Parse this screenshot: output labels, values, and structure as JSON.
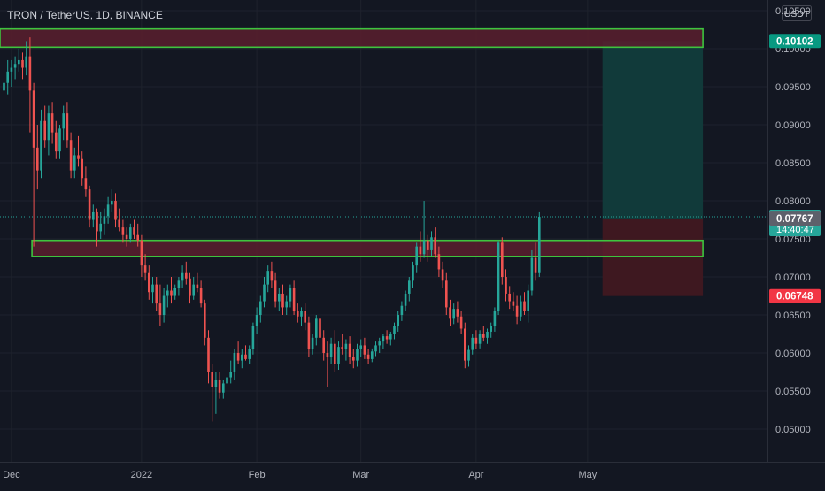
{
  "header": {
    "title": "TRON / TetherUS, 1D, BINANCE"
  },
  "currency_label": "USDT",
  "colors": {
    "background": "#131722",
    "up": "#26a69a",
    "down": "#ef5350",
    "zone_fill": "#5a1f2e",
    "zone_border": "#3ec43e",
    "target_fill": "#113a3a",
    "stop_fill": "#3e1820",
    "axis_text": "#b2b5be"
  },
  "chart_data": {
    "type": "candlestick",
    "title": "TRON / TetherUS, 1D, BINANCE",
    "ylim": [
      0.0457,
      0.1064
    ],
    "y_ticks": [
      "0.05000",
      "0.05500",
      "0.06000",
      "0.06500",
      "0.07000",
      "0.07500",
      "0.08000",
      "0.08500",
      "0.09000",
      "0.09500",
      "0.10000",
      "0.10500"
    ],
    "x_ticks": [
      {
        "label": "Dec",
        "index": 2
      },
      {
        "label": "2022",
        "index": 37
      },
      {
        "label": "Feb",
        "index": 68
      },
      {
        "label": "Mar",
        "index": 96
      },
      {
        "label": "Apr",
        "index": 127
      },
      {
        "label": "May",
        "index": 157
      }
    ],
    "price_labels": [
      {
        "label": "0.10102",
        "value": 0.10102,
        "kind": "target"
      },
      {
        "label": "0.07791",
        "value": 0.07791,
        "kind": "current",
        "countdown": "14:40:47"
      },
      {
        "label": "0.07767",
        "value": 0.07767,
        "kind": "entry"
      },
      {
        "label": "0.06748",
        "value": 0.06748,
        "kind": "stop"
      }
    ],
    "zones": [
      {
        "name": "resistance-zone",
        "top": 0.1026,
        "bottom": 0.1002,
        "start_index": 0,
        "end_index": 188
      },
      {
        "name": "support-zone",
        "top": 0.0748,
        "bottom": 0.0727,
        "start_index": 8,
        "end_index": 188
      }
    ],
    "position": {
      "start_index": 161,
      "end_index": 188,
      "entry": 0.07767,
      "target": 0.10102,
      "stop": 0.06748
    },
    "last_price": 0.07791,
    "candles": [
      [
        0.0945,
        0.096,
        0.0905,
        0.0955
      ],
      [
        0.0955,
        0.0985,
        0.094,
        0.097
      ],
      [
        0.097,
        0.0985,
        0.095,
        0.0975
      ],
      [
        0.0975,
        0.099,
        0.096,
        0.098
      ],
      [
        0.098,
        0.1,
        0.097,
        0.0985
      ],
      [
        0.0985,
        0.0995,
        0.096,
        0.0975
      ],
      [
        0.0975,
        0.101,
        0.0965,
        0.099
      ],
      [
        0.099,
        0.1015,
        0.089,
        0.0945
      ],
      [
        0.0945,
        0.0955,
        0.074,
        0.087
      ],
      [
        0.087,
        0.09,
        0.0815,
        0.084
      ],
      [
        0.084,
        0.092,
        0.083,
        0.0905
      ],
      [
        0.0905,
        0.0925,
        0.087,
        0.088
      ],
      [
        0.088,
        0.0925,
        0.086,
        0.0915
      ],
      [
        0.0915,
        0.093,
        0.0875,
        0.089
      ],
      [
        0.089,
        0.0905,
        0.0855,
        0.0865
      ],
      [
        0.0865,
        0.09,
        0.0855,
        0.0895
      ],
      [
        0.0895,
        0.0925,
        0.088,
        0.0915
      ],
      [
        0.0915,
        0.093,
        0.087,
        0.088
      ],
      [
        0.088,
        0.089,
        0.083,
        0.084
      ],
      [
        0.084,
        0.087,
        0.083,
        0.086
      ],
      [
        0.086,
        0.0885,
        0.0845,
        0.0855
      ],
      [
        0.0855,
        0.0865,
        0.082,
        0.083
      ],
      [
        0.083,
        0.0845,
        0.0805,
        0.0815
      ],
      [
        0.0815,
        0.082,
        0.0765,
        0.0775
      ],
      [
        0.0775,
        0.0795,
        0.0765,
        0.0785
      ],
      [
        0.0785,
        0.079,
        0.074,
        0.076
      ],
      [
        0.076,
        0.0785,
        0.075,
        0.077
      ],
      [
        0.077,
        0.079,
        0.0755,
        0.078
      ],
      [
        0.078,
        0.0805,
        0.077,
        0.0795
      ],
      [
        0.0795,
        0.0815,
        0.0785,
        0.08
      ],
      [
        0.08,
        0.081,
        0.0765,
        0.0775
      ],
      [
        0.0775,
        0.079,
        0.076,
        0.0765
      ],
      [
        0.0765,
        0.0775,
        0.0745,
        0.0755
      ],
      [
        0.0755,
        0.0765,
        0.074,
        0.075
      ],
      [
        0.075,
        0.077,
        0.0745,
        0.0765
      ],
      [
        0.0765,
        0.0775,
        0.075,
        0.0755
      ],
      [
        0.0755,
        0.077,
        0.074,
        0.0748
      ],
      [
        0.0748,
        0.0755,
        0.07,
        0.0715
      ],
      [
        0.0715,
        0.073,
        0.0695,
        0.0705
      ],
      [
        0.0705,
        0.0715,
        0.067,
        0.068
      ],
      [
        0.068,
        0.07,
        0.0665,
        0.069
      ],
      [
        0.069,
        0.07,
        0.0655,
        0.0665
      ],
      [
        0.0665,
        0.069,
        0.0635,
        0.065
      ],
      [
        0.065,
        0.0685,
        0.064,
        0.0675
      ],
      [
        0.0675,
        0.069,
        0.066,
        0.0682
      ],
      [
        0.0682,
        0.07,
        0.0665,
        0.0675
      ],
      [
        0.0675,
        0.069,
        0.067,
        0.0685
      ],
      [
        0.0685,
        0.07,
        0.0675,
        0.0695
      ],
      [
        0.0695,
        0.0715,
        0.0685,
        0.0705
      ],
      [
        0.0705,
        0.072,
        0.069,
        0.0698
      ],
      [
        0.0698,
        0.0705,
        0.0665,
        0.0675
      ],
      [
        0.0675,
        0.07,
        0.067,
        0.069
      ],
      [
        0.069,
        0.0705,
        0.068,
        0.0685
      ],
      [
        0.0685,
        0.0695,
        0.066,
        0.0665
      ],
      [
        0.0665,
        0.067,
        0.061,
        0.062
      ],
      [
        0.062,
        0.063,
        0.056,
        0.0575
      ],
      [
        0.0575,
        0.0585,
        0.051,
        0.0555
      ],
      [
        0.0555,
        0.0575,
        0.052,
        0.0565
      ],
      [
        0.0565,
        0.0575,
        0.054,
        0.0548
      ],
      [
        0.0548,
        0.0565,
        0.054,
        0.056
      ],
      [
        0.056,
        0.0575,
        0.055,
        0.0568
      ],
      [
        0.0568,
        0.059,
        0.056,
        0.0575
      ],
      [
        0.0575,
        0.0605,
        0.0565,
        0.06
      ],
      [
        0.06,
        0.0615,
        0.0585,
        0.059
      ],
      [
        0.059,
        0.0605,
        0.058,
        0.0598
      ],
      [
        0.0598,
        0.061,
        0.059,
        0.0592
      ],
      [
        0.0592,
        0.061,
        0.0585,
        0.0605
      ],
      [
        0.0605,
        0.064,
        0.0598,
        0.0635
      ],
      [
        0.0635,
        0.066,
        0.0625,
        0.065
      ],
      [
        0.065,
        0.0675,
        0.064,
        0.0668
      ],
      [
        0.0668,
        0.07,
        0.066,
        0.069
      ],
      [
        0.069,
        0.0715,
        0.068,
        0.0708
      ],
      [
        0.0708,
        0.072,
        0.0685,
        0.0695
      ],
      [
        0.0695,
        0.0705,
        0.066,
        0.0668
      ],
      [
        0.0668,
        0.0685,
        0.0655,
        0.0678
      ],
      [
        0.0678,
        0.069,
        0.065,
        0.066
      ],
      [
        0.066,
        0.0675,
        0.065,
        0.0668
      ],
      [
        0.0668,
        0.069,
        0.066,
        0.0685
      ],
      [
        0.0685,
        0.0695,
        0.065,
        0.0655
      ],
      [
        0.0655,
        0.0665,
        0.064,
        0.0648
      ],
      [
        0.0648,
        0.066,
        0.0635,
        0.0655
      ],
      [
        0.0655,
        0.0665,
        0.063,
        0.064
      ],
      [
        0.064,
        0.0648,
        0.0595,
        0.0605
      ],
      [
        0.0605,
        0.0625,
        0.0598,
        0.062
      ],
      [
        0.062,
        0.065,
        0.061,
        0.0645
      ],
      [
        0.0645,
        0.065,
        0.061,
        0.062
      ],
      [
        0.062,
        0.063,
        0.059,
        0.06
      ],
      [
        0.06,
        0.0615,
        0.0555,
        0.0595
      ],
      [
        0.0595,
        0.062,
        0.0585,
        0.0612
      ],
      [
        0.0612,
        0.063,
        0.0575,
        0.0585
      ],
      [
        0.0585,
        0.0615,
        0.0578,
        0.0608
      ],
      [
        0.0608,
        0.0625,
        0.0598,
        0.0605
      ],
      [
        0.0605,
        0.0618,
        0.059,
        0.0612
      ],
      [
        0.0612,
        0.0622,
        0.0585,
        0.0595
      ],
      [
        0.0595,
        0.0605,
        0.058,
        0.059
      ],
      [
        0.059,
        0.0612,
        0.0582,
        0.0605
      ],
      [
        0.0605,
        0.0618,
        0.0595,
        0.061
      ],
      [
        0.061,
        0.062,
        0.0592,
        0.0598
      ],
      [
        0.0598,
        0.0605,
        0.0585,
        0.0592
      ],
      [
        0.0592,
        0.0606,
        0.0588,
        0.0602
      ],
      [
        0.0602,
        0.0615,
        0.0596,
        0.061
      ],
      [
        0.061,
        0.062,
        0.06,
        0.0615
      ],
      [
        0.0615,
        0.0625,
        0.0605,
        0.0622
      ],
      [
        0.0622,
        0.063,
        0.0612,
        0.0618
      ],
      [
        0.0618,
        0.0628,
        0.061,
        0.0625
      ],
      [
        0.0625,
        0.064,
        0.0618,
        0.0636
      ],
      [
        0.0636,
        0.0655,
        0.0628,
        0.065
      ],
      [
        0.065,
        0.0668,
        0.0642,
        0.0662
      ],
      [
        0.0662,
        0.0682,
        0.0655,
        0.0678
      ],
      [
        0.0678,
        0.07,
        0.0668,
        0.0695
      ],
      [
        0.0695,
        0.072,
        0.0685,
        0.0715
      ],
      [
        0.0715,
        0.0745,
        0.0705,
        0.074
      ],
      [
        0.074,
        0.076,
        0.072,
        0.073
      ],
      [
        0.073,
        0.08,
        0.0725,
        0.0748
      ],
      [
        0.0748,
        0.0755,
        0.072,
        0.0735
      ],
      [
        0.0735,
        0.076,
        0.0728,
        0.0752
      ],
      [
        0.0752,
        0.0765,
        0.0725,
        0.073
      ],
      [
        0.073,
        0.074,
        0.07,
        0.071
      ],
      [
        0.071,
        0.072,
        0.0685,
        0.0695
      ],
      [
        0.0695,
        0.0705,
        0.065,
        0.066
      ],
      [
        0.066,
        0.067,
        0.0635,
        0.0645
      ],
      [
        0.0645,
        0.0665,
        0.0638,
        0.0658
      ],
      [
        0.0658,
        0.0668,
        0.064,
        0.0648
      ],
      [
        0.0648,
        0.0655,
        0.0625,
        0.0632
      ],
      [
        0.0632,
        0.064,
        0.058,
        0.059
      ],
      [
        0.059,
        0.061,
        0.0582,
        0.0604
      ],
      [
        0.0604,
        0.0625,
        0.0598,
        0.062
      ],
      [
        0.062,
        0.063,
        0.0605,
        0.0612
      ],
      [
        0.0612,
        0.063,
        0.0606,
        0.0625
      ],
      [
        0.0625,
        0.0635,
        0.0615,
        0.062
      ],
      [
        0.062,
        0.0632,
        0.0612,
        0.0628
      ],
      [
        0.0628,
        0.064,
        0.062,
        0.0635
      ],
      [
        0.0635,
        0.066,
        0.0628,
        0.0655
      ],
      [
        0.0655,
        0.0748,
        0.065,
        0.0745
      ],
      [
        0.0745,
        0.0752,
        0.069,
        0.07
      ],
      [
        0.07,
        0.071,
        0.0668,
        0.0678
      ],
      [
        0.0678,
        0.0688,
        0.0658,
        0.0668
      ],
      [
        0.0668,
        0.068,
        0.0655,
        0.0662
      ],
      [
        0.0662,
        0.0675,
        0.0638,
        0.0648
      ],
      [
        0.0648,
        0.0675,
        0.0642,
        0.0668
      ],
      [
        0.0668,
        0.068,
        0.065,
        0.0655
      ],
      [
        0.0655,
        0.069,
        0.064,
        0.0682
      ],
      [
        0.0682,
        0.0735,
        0.0675,
        0.0725
      ],
      [
        0.0725,
        0.0745,
        0.0695,
        0.0705
      ],
      [
        0.0705,
        0.0785,
        0.07,
        0.0779
      ]
    ]
  }
}
